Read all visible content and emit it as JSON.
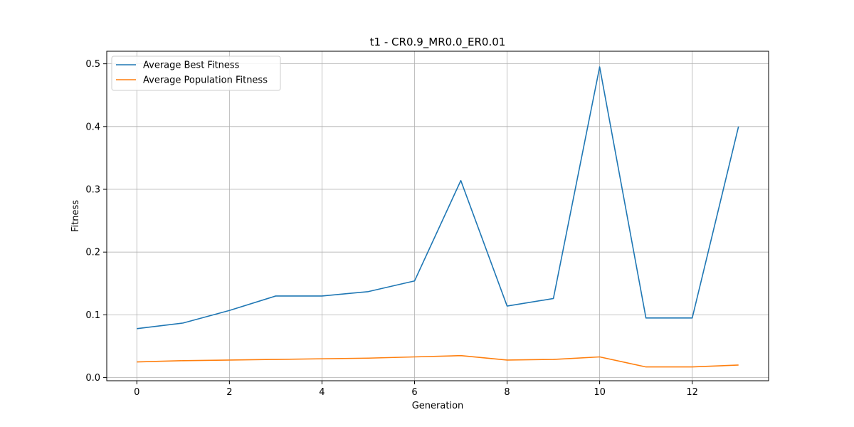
{
  "chart_data": {
    "type": "line",
    "title": "t1 - CR0.9_MR0.0_ER0.01",
    "xlabel": "Generation",
    "ylabel": "Fitness",
    "x": [
      0,
      1,
      2,
      3,
      4,
      5,
      6,
      7,
      8,
      9,
      10,
      11,
      12,
      13
    ],
    "xlim": [
      -0.65,
      13.65
    ],
    "ylim": [
      -0.005,
      0.52
    ],
    "xticks": [
      0,
      2,
      4,
      6,
      8,
      10,
      12
    ],
    "yticks": [
      0.0,
      0.1,
      0.2,
      0.3,
      0.4,
      0.5
    ],
    "ytick_labels": [
      "0.0",
      "0.1",
      "0.2",
      "0.3",
      "0.4",
      "0.5"
    ],
    "grid": true,
    "legend_position": "upper-left",
    "series": [
      {
        "name": "Average Best Fitness",
        "color": "#1f77b4",
        "values": [
          0.078,
          0.087,
          0.107,
          0.13,
          0.13,
          0.137,
          0.154,
          0.314,
          0.114,
          0.126,
          0.495,
          0.095,
          0.095,
          0.4
        ]
      },
      {
        "name": "Average Population Fitness",
        "color": "#ff7f0e",
        "values": [
          0.025,
          0.027,
          0.028,
          0.029,
          0.03,
          0.031,
          0.033,
          0.035,
          0.028,
          0.029,
          0.033,
          0.017,
          0.017,
          0.02
        ]
      }
    ]
  }
}
